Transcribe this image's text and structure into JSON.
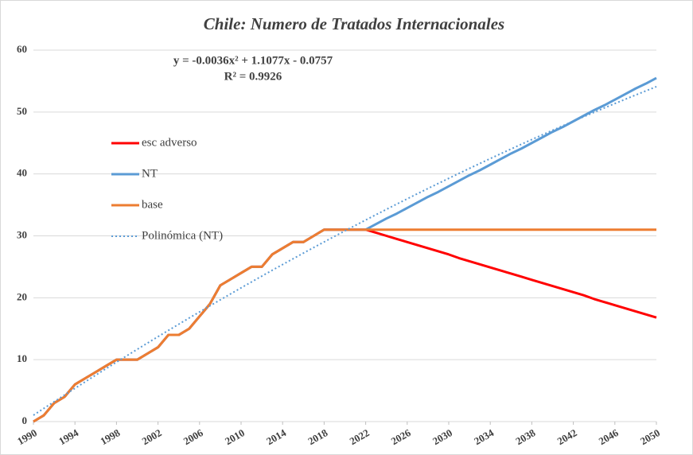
{
  "chart_data": {
    "type": "line",
    "title": "Chile: Numero de Tratados Internacionales",
    "annotations": [
      "y = -0.0036x² + 1.1077x - 0.0757",
      "R² = 0.9926"
    ],
    "x": [
      1990,
      1991,
      1992,
      1993,
      1994,
      1995,
      1996,
      1997,
      1998,
      1999,
      2000,
      2001,
      2002,
      2003,
      2004,
      2005,
      2006,
      2007,
      2008,
      2009,
      2010,
      2011,
      2012,
      2013,
      2014,
      2015,
      2016,
      2017,
      2018,
      2019,
      2020,
      2021,
      2022,
      2023,
      2024,
      2025,
      2026,
      2027,
      2028,
      2029,
      2030,
      2031,
      2032,
      2033,
      2034,
      2035,
      2036,
      2037,
      2038,
      2039,
      2040,
      2041,
      2042,
      2043,
      2044,
      2045,
      2046,
      2047,
      2048,
      2049,
      2050
    ],
    "xlim": [
      1990,
      2050
    ],
    "xticks": [
      1990,
      1994,
      1998,
      2002,
      2006,
      2010,
      2014,
      2018,
      2022,
      2026,
      2030,
      2034,
      2038,
      2042,
      2046,
      2050
    ],
    "ylim": [
      0,
      60
    ],
    "yticks": [
      0,
      10,
      20,
      30,
      40,
      50,
      60
    ],
    "grid": true,
    "legend": "left",
    "series": [
      {
        "name": "esc adverso",
        "color": "#ff0000",
        "style": "solid",
        "values": [
          0,
          1,
          3,
          4,
          6,
          7,
          8,
          9,
          10,
          10,
          10,
          11,
          12,
          14,
          14,
          15,
          17,
          19,
          22,
          23,
          24,
          25,
          25,
          27,
          28,
          29,
          29,
          30,
          31,
          31,
          31,
          31,
          31,
          30.5,
          30,
          29.5,
          29,
          28.5,
          28,
          27.5,
          27,
          26.4,
          25.9,
          25.4,
          24.9,
          24.4,
          23.9,
          23.4,
          22.9,
          22.4,
          21.9,
          21.4,
          20.9,
          20.4,
          19.8,
          19.3,
          18.8,
          18.3,
          17.8,
          17.3,
          16.8
        ]
      },
      {
        "name": "NT",
        "color": "#5b9bd5",
        "style": "solid",
        "values": [
          0,
          1,
          3,
          4,
          6,
          7,
          8,
          9,
          10,
          10,
          10,
          11,
          12,
          14,
          14,
          15,
          17,
          19,
          22,
          23,
          24,
          25,
          25,
          27,
          28,
          29,
          29,
          30,
          31,
          31,
          31,
          31,
          31,
          31.9,
          32.8,
          33.6,
          34.5,
          35.4,
          36.3,
          37.1,
          38,
          38.9,
          39.8,
          40.6,
          41.5,
          42.4,
          43.3,
          44.1,
          45,
          45.9,
          46.8,
          47.6,
          48.5,
          49.4,
          50.3,
          51.1,
          52,
          52.9,
          53.8,
          54.6,
          55.5
        ]
      },
      {
        "name": "base",
        "color": "#ed7d31",
        "style": "solid",
        "values": [
          0,
          1,
          3,
          4,
          6,
          7,
          8,
          9,
          10,
          10,
          10,
          11,
          12,
          14,
          14,
          15,
          17,
          19,
          22,
          23,
          24,
          25,
          25,
          27,
          28,
          29,
          29,
          30,
          31,
          31,
          31,
          31,
          31,
          31,
          31,
          31,
          31,
          31,
          31,
          31,
          31,
          31,
          31,
          31,
          31,
          31,
          31,
          31,
          31,
          31,
          31,
          31,
          31,
          31,
          31,
          31,
          31,
          31,
          31,
          31,
          31
        ]
      },
      {
        "name": "Polinómica (NT)",
        "color": "#5b9bd5",
        "style": "dotted",
        "values": [
          1.03,
          2.13,
          3.22,
          4.3,
          5.37,
          6.44,
          7.5,
          8.56,
          9.6,
          10.64,
          11.67,
          12.7,
          13.72,
          14.73,
          15.73,
          16.73,
          17.71,
          18.7,
          19.67,
          20.64,
          21.6,
          22.55,
          23.5,
          24.44,
          25.37,
          26.29,
          27.21,
          28.12,
          29.02,
          29.92,
          30.8,
          31.68,
          32.56,
          33.42,
          34.28,
          35.14,
          35.98,
          36.82,
          37.65,
          38.47,
          39.29,
          40.1,
          40.9,
          41.69,
          42.48,
          43.26,
          44.03,
          44.8,
          45.56,
          46.31,
          47.05,
          47.79,
          48.52,
          49.24,
          49.96,
          50.67,
          51.37,
          52.06,
          52.75,
          53.43,
          54.1
        ]
      }
    ]
  }
}
